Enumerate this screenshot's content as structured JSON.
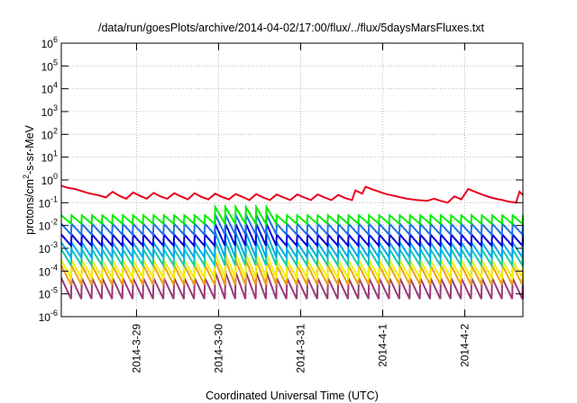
{
  "chart_data": {
    "type": "line",
    "title": "/data/run/goesPlots/archive/2014-04-02/17:00/flux/../flux/5daysMarsFluxes.txt",
    "xlabel": "Coordinated Universal Time (UTC)",
    "ylabel": {
      "base": "protons/cm",
      "sup": "2",
      "rest": "-s-sr-MeV"
    },
    "x_range_days": [
      "2014-03-28T02:00",
      "2014-04-02T17:00"
    ],
    "x_ticks": [
      {
        "label": "2014-3-29",
        "date": "2014-03-29"
      },
      {
        "label": "2014-3-30",
        "date": "2014-03-30"
      },
      {
        "label": "2014-3-31",
        "date": "2014-03-31"
      },
      {
        "label": "2014-4-1",
        "date": "2014-04-01"
      },
      {
        "label": "2014-4-2",
        "date": "2014-04-02"
      }
    ],
    "y_scale": "log",
    "ylim": [
      1e-06,
      1000000.0
    ],
    "y_ticks": [
      {
        "base": "10",
        "exp": "6",
        "value": 1000000.0
      },
      {
        "base": "10",
        "exp": "5",
        "value": 100000.0
      },
      {
        "base": "10",
        "exp": "4",
        "value": 10000.0
      },
      {
        "base": "10",
        "exp": "3",
        "value": 1000.0
      },
      {
        "base": "10",
        "exp": "2",
        "value": 100.0
      },
      {
        "base": "10",
        "exp": "1",
        "value": 10.0
      },
      {
        "base": "10",
        "exp": "0",
        "value": 1.0
      },
      {
        "base": "10",
        "exp": "-1",
        "value": 0.1
      },
      {
        "base": "10",
        "exp": "-2",
        "value": 0.01
      },
      {
        "base": "10",
        "exp": "-3",
        "value": 0.001
      },
      {
        "base": "10",
        "exp": "-4",
        "value": 0.0001
      },
      {
        "base": "10",
        "exp": "-5",
        "value": 1e-05
      },
      {
        "base": "10",
        "exp": "-6",
        "value": 1e-06
      }
    ],
    "grid": true,
    "series": [
      {
        "color": "#e8001e",
        "points": [
          [
            "2014-03-28T02:00",
            0.55
          ],
          [
            "2014-03-28T04:00",
            0.45
          ],
          [
            "2014-03-28T06:00",
            0.4
          ],
          [
            "2014-03-28T08:00",
            0.32
          ],
          [
            "2014-03-28T10:00",
            0.26
          ],
          [
            "2014-03-28T13:00",
            0.21
          ],
          [
            "2014-03-28T15:00",
            0.17
          ],
          [
            "2014-03-28T17:00",
            0.3
          ],
          [
            "2014-03-28T19:00",
            0.2
          ],
          [
            "2014-03-28T21:00",
            0.15
          ],
          [
            "2014-03-28T23:00",
            0.28
          ],
          [
            "2014-03-29T01:00",
            0.2
          ],
          [
            "2014-03-29T03:00",
            0.15
          ],
          [
            "2014-03-29T05:00",
            0.27
          ],
          [
            "2014-03-29T07:00",
            0.19
          ],
          [
            "2014-03-29T09:00",
            0.15
          ],
          [
            "2014-03-29T11:00",
            0.26
          ],
          [
            "2014-03-29T13:00",
            0.19
          ],
          [
            "2014-03-29T15:00",
            0.14
          ],
          [
            "2014-03-29T17:00",
            0.26
          ],
          [
            "2014-03-29T19:00",
            0.18
          ],
          [
            "2014-03-29T21:00",
            0.14
          ],
          [
            "2014-03-29T23:00",
            0.25
          ],
          [
            "2014-03-30T01:00",
            0.18
          ],
          [
            "2014-03-30T03:00",
            0.14
          ],
          [
            "2014-03-30T05:00",
            0.24
          ],
          [
            "2014-03-30T07:00",
            0.18
          ],
          [
            "2014-03-30T09:00",
            0.13
          ],
          [
            "2014-03-30T11:00",
            0.24
          ],
          [
            "2014-03-30T13:00",
            0.17
          ],
          [
            "2014-03-30T15:00",
            0.13
          ],
          [
            "2014-03-30T17:00",
            0.23
          ],
          [
            "2014-03-30T19:00",
            0.17
          ],
          [
            "2014-03-30T21:00",
            0.13
          ],
          [
            "2014-03-30T23:00",
            0.23
          ],
          [
            "2014-03-31T01:00",
            0.17
          ],
          [
            "2014-03-31T03:00",
            0.13
          ],
          [
            "2014-03-31T05:00",
            0.23
          ],
          [
            "2014-03-31T07:00",
            0.17
          ],
          [
            "2014-03-31T09:00",
            0.13
          ],
          [
            "2014-03-31T11:00",
            0.22
          ],
          [
            "2014-03-31T13:00",
            0.16
          ],
          [
            "2014-03-31T15:00",
            0.13
          ],
          [
            "2014-03-31T16:00",
            0.35
          ],
          [
            "2014-03-31T18:00",
            0.25
          ],
          [
            "2014-03-31T19:00",
            0.5
          ],
          [
            "2014-03-31T21:00",
            0.38
          ],
          [
            "2014-03-31T23:00",
            0.3
          ],
          [
            "2014-04-01T01:00",
            0.24
          ],
          [
            "2014-04-01T04:00",
            0.19
          ],
          [
            "2014-04-01T07:00",
            0.15
          ],
          [
            "2014-04-01T10:00",
            0.13
          ],
          [
            "2014-04-01T13:00",
            0.12
          ],
          [
            "2014-04-01T15:00",
            0.15
          ],
          [
            "2014-04-01T17:00",
            0.12
          ],
          [
            "2014-04-01T19:00",
            0.1
          ],
          [
            "2014-04-01T21:00",
            0.19
          ],
          [
            "2014-04-01T23:00",
            0.14
          ],
          [
            "2014-04-02T01:00",
            0.4
          ],
          [
            "2014-04-02T03:00",
            0.3
          ],
          [
            "2014-04-02T05:00",
            0.23
          ],
          [
            "2014-04-02T07:00",
            0.18
          ],
          [
            "2014-04-02T09:00",
            0.15
          ],
          [
            "2014-04-02T11:00",
            0.13
          ],
          [
            "2014-04-02T13:00",
            0.11
          ],
          [
            "2014-04-02T15:00",
            0.1
          ],
          [
            "2014-04-02T16:00",
            0.3
          ],
          [
            "2014-04-02T17:00",
            0.22
          ]
        ]
      },
      {
        "color": "#00ee00",
        "base": 0.012,
        "peak": 0.028,
        "jump": 0.065,
        "period_hours": 3
      },
      {
        "color": "#1e6fe8",
        "base": 0.004,
        "peak": 0.012,
        "jump": 0.03,
        "period_hours": 3
      },
      {
        "color": "#0000dd",
        "base": 0.0013,
        "peak": 0.004,
        "jump": 0.012,
        "period_hours": 3
      },
      {
        "color": "#00aaee",
        "base": 0.0004,
        "peak": 0.0018,
        "jump": 0.005,
        "period_hours": 3
      },
      {
        "color": "#16c9a8",
        "base": 0.00018,
        "peak": 0.0009,
        "jump": 0.002,
        "period_hours": 3
      },
      {
        "color": "#f0f000",
        "base": 5e-05,
        "peak": 0.0003,
        "jump": 0.0006,
        "period_hours": 3
      },
      {
        "color": "#f0a010",
        "base": 2.5e-05,
        "peak": 0.00018,
        "jump": 0.0003,
        "period_hours": 3
      },
      {
        "color": "#9a3a78",
        "base": 6e-06,
        "peak": 5e-05,
        "jump": 9e-05,
        "period_hours": 3
      }
    ]
  }
}
